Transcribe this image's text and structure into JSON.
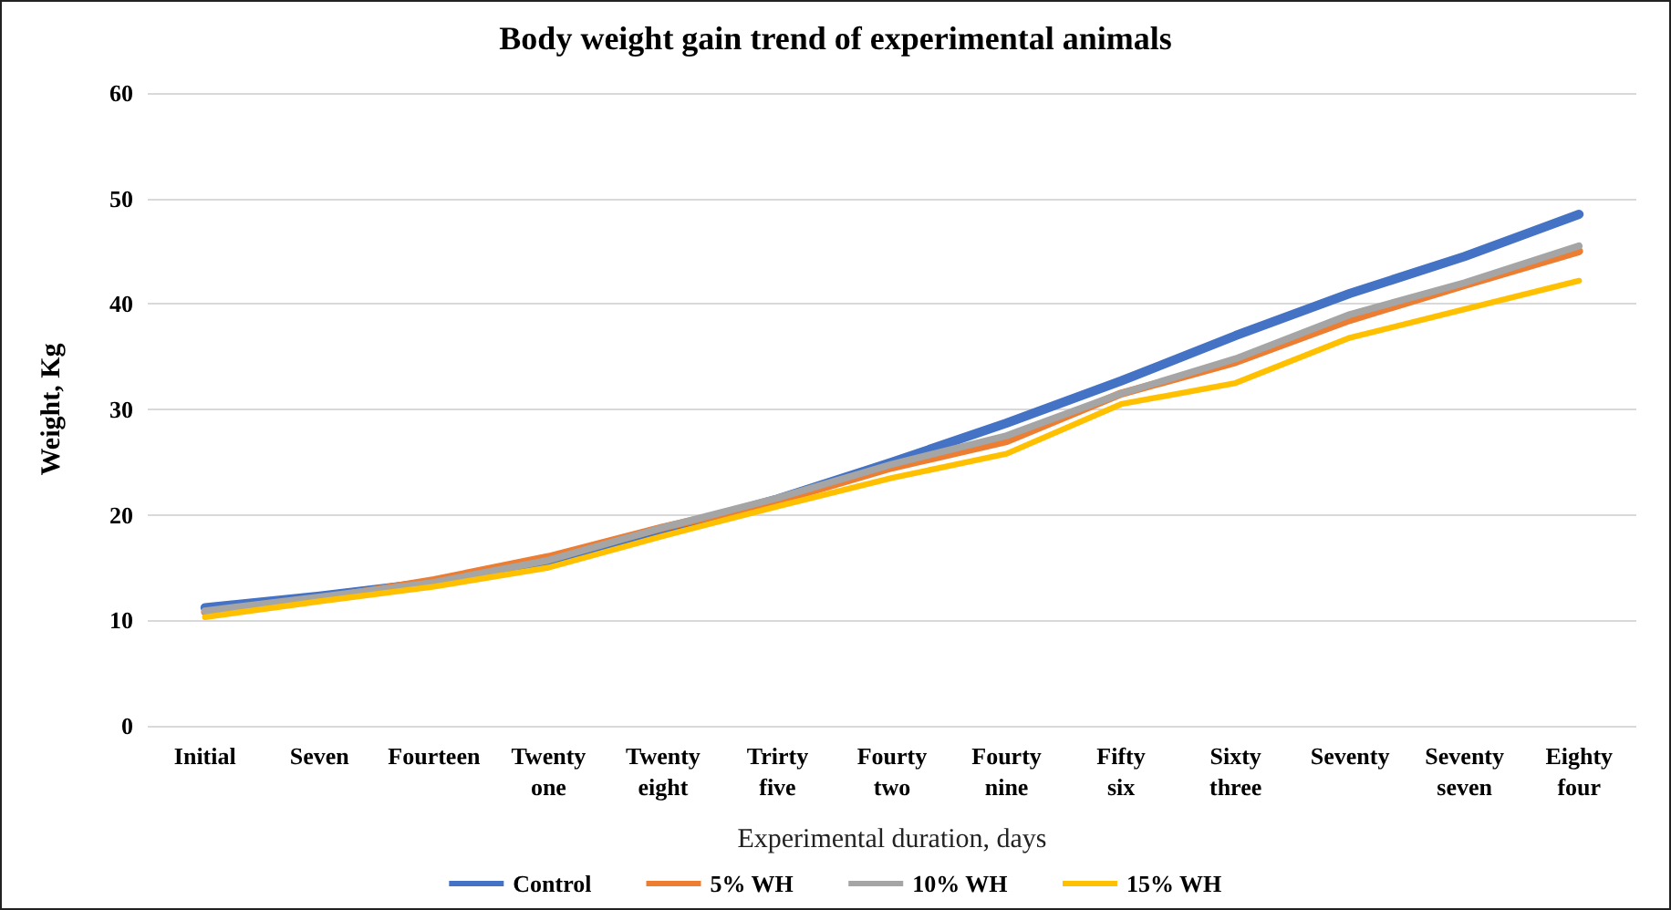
{
  "chart_data": {
    "type": "line",
    "title": "Body weight gain trend of experimental animals",
    "xlabel": "Experimental duration, days",
    "ylabel": "Weight, Kg",
    "categories": [
      "Initial",
      "Seven",
      "Fourteen",
      "Twenty one",
      "Twenty eight",
      "Trirty five",
      "Fourty two",
      "Fourty nine",
      "Fifty six",
      "Sixty three",
      "Seventy",
      "Seventy seven",
      "Eighty four"
    ],
    "series": [
      {
        "name": "Control",
        "color": "#4472c4",
        "values": [
          11.2,
          12.3,
          13.6,
          15.5,
          18.5,
          21.5,
          25,
          28.7,
          32.7,
          37,
          41,
          44.5,
          48.5
        ]
      },
      {
        "name": "5% WH",
        "color": "#ed7d31",
        "values": [
          10.8,
          12,
          13.8,
          16,
          18.8,
          21.3,
          24.5,
          27,
          31.5,
          34.5,
          38.5,
          41.8,
          45
        ]
      },
      {
        "name": "10% WH",
        "color": "#a5a5a5",
        "values": [
          10.9,
          12.2,
          13.6,
          15.7,
          18.8,
          21.6,
          24.8,
          27.5,
          31.5,
          34.8,
          39,
          42,
          45.5
        ]
      },
      {
        "name": "15% WH",
        "color": "#ffc000",
        "values": [
          10.3,
          11.8,
          13.2,
          15,
          18,
          20.8,
          23.5,
          25.8,
          30.5,
          32.5,
          36.8,
          39.5,
          42.2
        ]
      }
    ],
    "ylim": [
      0,
      60
    ],
    "yticks": [
      0,
      10,
      20,
      30,
      40,
      50,
      60
    ],
    "grid": "y",
    "legend": "bottom",
    "marker": "none",
    "line_style": "solid"
  }
}
